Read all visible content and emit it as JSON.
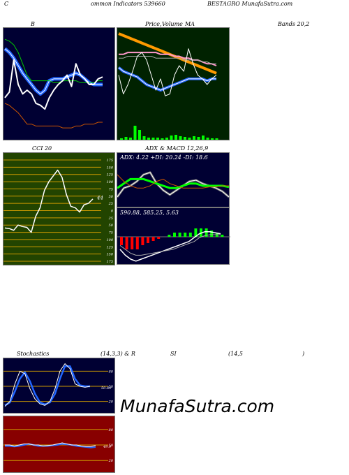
{
  "header": {
    "left": "C",
    "mid": "ommon  Indicators 539660",
    "right": "BESTAGRO MunafaSutra.com"
  },
  "panel_titles": {
    "bollinger": "B",
    "price": "Price,",
    "volume": "Volume",
    "ma": "MA",
    "bands": "Bands 20,2",
    "cci": "CCI 20",
    "adx": "ADX",
    "macd": "& MACD 12,26,9",
    "stoch": "Stochastics",
    "stoch_params": "(14,3,3) & R",
    "rsi": "SI",
    "rsi_params": "(14,5",
    "rsi_close": ")"
  },
  "readouts": {
    "adx": "ADX: 4.22  +DI: 20.24  -DI: 18.6",
    "macd": "590.88,  585.25,  5.63",
    "cci_value": "44",
    "stoch_value": "50.64",
    "rsi_value": "49.9"
  },
  "watermark": "MunafaSutra.com",
  "colors": {
    "dark_panel": "#000033",
    "price_panel": "#002200",
    "cci_panel": "#224400",
    "rsi_panel": "#880000",
    "volume_bars": "#00ff00",
    "macd_bars_neg": "#ff0000",
    "macd_bars_pos": "#00ff00"
  },
  "chart_data": [
    {
      "type": "line",
      "name": "bollinger",
      "series": [
        {
          "values": [
            79,
            78,
            76,
            72,
            66,
            60,
            57,
            57,
            57,
            57,
            57,
            56,
            56,
            57,
            57,
            57,
            57,
            56,
            56,
            56,
            56,
            57,
            57
          ]
        },
        {
          "values": [
            74,
            72,
            69,
            65,
            61,
            58,
            55,
            52,
            50,
            52,
            57,
            58,
            58,
            58,
            59,
            60,
            61,
            60,
            58,
            56,
            55,
            55,
            55
          ]
        },
        {
          "values": [
            66,
            65,
            64,
            61,
            58,
            55,
            53,
            53,
            54,
            56,
            60,
            60,
            61,
            61,
            61,
            62,
            62,
            62,
            60,
            58,
            57,
            57,
            57
          ]
        },
        {
          "values": [
            45,
            44,
            42,
            40,
            37,
            34,
            34,
            33,
            33,
            33,
            33,
            33,
            33,
            32,
            32,
            32,
            33,
            33,
            34,
            34,
            34,
            35,
            35
          ]
        },
        {
          "values": [
            48,
            51,
            68,
            55,
            50,
            52,
            50,
            45,
            44,
            42,
            48,
            52,
            55,
            57,
            60,
            54,
            66,
            60,
            58,
            55,
            55,
            58,
            59
          ]
        }
      ]
    },
    {
      "type": "line",
      "name": "price-volume-ma",
      "series": [
        {
          "values": [
            82,
            81,
            80,
            79,
            78,
            77,
            76,
            75,
            74,
            73,
            72,
            71,
            70,
            69,
            68,
            67,
            66,
            65,
            64,
            63,
            62,
            61
          ]
        },
        {
          "values": [
            71,
            71,
            72,
            72,
            72,
            72,
            72,
            72,
            72,
            71,
            71,
            71,
            70,
            70,
            69,
            69,
            68,
            68,
            67,
            66,
            66,
            65
          ]
        },
        {
          "values": [
            69,
            69,
            70,
            70,
            70,
            70,
            70,
            70,
            69,
            69,
            69,
            69,
            69,
            69,
            68,
            68,
            68,
            68,
            67,
            67,
            66,
            66
          ]
        },
        {
          "values": [
            64,
            62,
            61,
            60,
            59,
            57,
            55,
            54,
            53,
            52,
            53,
            54,
            55,
            56,
            57,
            58,
            58,
            58,
            58,
            57,
            58,
            58
          ]
        },
        {
          "values": [
            60,
            50,
            55,
            62,
            70,
            72,
            68,
            60,
            52,
            58,
            49,
            50,
            60,
            65,
            62,
            74,
            66,
            60,
            58,
            55,
            58,
            60
          ]
        }
      ],
      "volume": [
        2,
        4,
        3,
        20,
        14,
        5,
        3,
        3,
        3,
        2,
        3,
        6,
        7,
        5,
        4,
        3,
        5,
        4,
        6,
        3,
        2,
        2
      ]
    },
    {
      "type": "line",
      "name": "cci",
      "ylim": [
        -175,
        175
      ],
      "ticks": [
        175,
        150,
        125,
        100,
        75,
        50,
        25,
        0,
        -25,
        -50,
        -75,
        -100,
        -125,
        -150,
        -175
      ],
      "tick_labels": [
        "175",
        "150",
        "125",
        "100",
        "75",
        "50",
        "25",
        "0",
        "25",
        "50",
        "75",
        "100",
        "125",
        "150",
        "175"
      ],
      "values": [
        -60,
        -62,
        -68,
        -50,
        -55,
        -58,
        -75,
        -20,
        10,
        70,
        100,
        120,
        140,
        115,
        55,
        15,
        10,
        -5,
        20,
        25,
        40
      ]
    },
    {
      "type": "line",
      "name": "adx",
      "series": [
        {
          "values": [
            10,
            18,
            20,
            24,
            30,
            32,
            22,
            16,
            12,
            16,
            20,
            24,
            25,
            22,
            20,
            18,
            15,
            10
          ]
        },
        {
          "values": [
            18,
            22,
            26,
            26,
            26,
            24,
            22,
            20,
            18,
            18,
            20,
            22,
            22,
            20,
            20,
            20,
            20,
            19
          ]
        },
        {
          "values": [
            30,
            24,
            20,
            18,
            18,
            20,
            24,
            26,
            22,
            20,
            18,
            18,
            18,
            18,
            19,
            19,
            20,
            20
          ]
        }
      ]
    },
    {
      "type": "line",
      "name": "macd",
      "series": [
        {
          "values": [
            -10,
            -16,
            -20,
            -22,
            -20,
            -18,
            -16,
            -14,
            -12,
            -10,
            -8,
            -6,
            -4,
            -2,
            2,
            6,
            8,
            8,
            7,
            6
          ]
        },
        {
          "values": [
            -6,
            -10,
            -14,
            -16,
            -16,
            -15,
            -14,
            -13,
            -12,
            -11,
            -10,
            -8,
            -6,
            -4,
            -2,
            2,
            4,
            5,
            5,
            5
          ]
        }
      ],
      "histogram": [
        -4,
        -6,
        -6,
        -6,
        -4,
        -3,
        -2,
        -1,
        0,
        1,
        2,
        2,
        2,
        2,
        4,
        4,
        4,
        3,
        2,
        1
      ]
    },
    {
      "type": "line",
      "name": "stochastics",
      "ylim": [
        0,
        100
      ],
      "ticks": [
        80,
        50,
        20
      ],
      "series": [
        {
          "values": [
            10,
            20,
            55,
            80,
            75,
            45,
            25,
            15,
            12,
            20,
            45,
            80,
            95,
            85,
            55,
            50,
            48,
            50
          ]
        },
        {
          "values": [
            12,
            18,
            40,
            65,
            78,
            60,
            35,
            18,
            14,
            18,
            35,
            65,
            90,
            90,
            65,
            52,
            50,
            50
          ]
        }
      ]
    },
    {
      "type": "line",
      "name": "rsi",
      "ylim": [
        0,
        100
      ],
      "ticks": [
        80,
        50,
        20
      ],
      "series": [
        {
          "values": [
            50,
            50,
            48,
            50,
            52,
            52,
            50,
            50,
            48,
            49,
            50,
            52,
            54,
            52,
            50,
            50,
            48,
            47,
            47,
            49
          ]
        },
        {
          "values": [
            48,
            48,
            47,
            48,
            50,
            52,
            50,
            48,
            48,
            48,
            49,
            50,
            52,
            51,
            50,
            48,
            47,
            46,
            45,
            46
          ]
        }
      ]
    }
  ]
}
